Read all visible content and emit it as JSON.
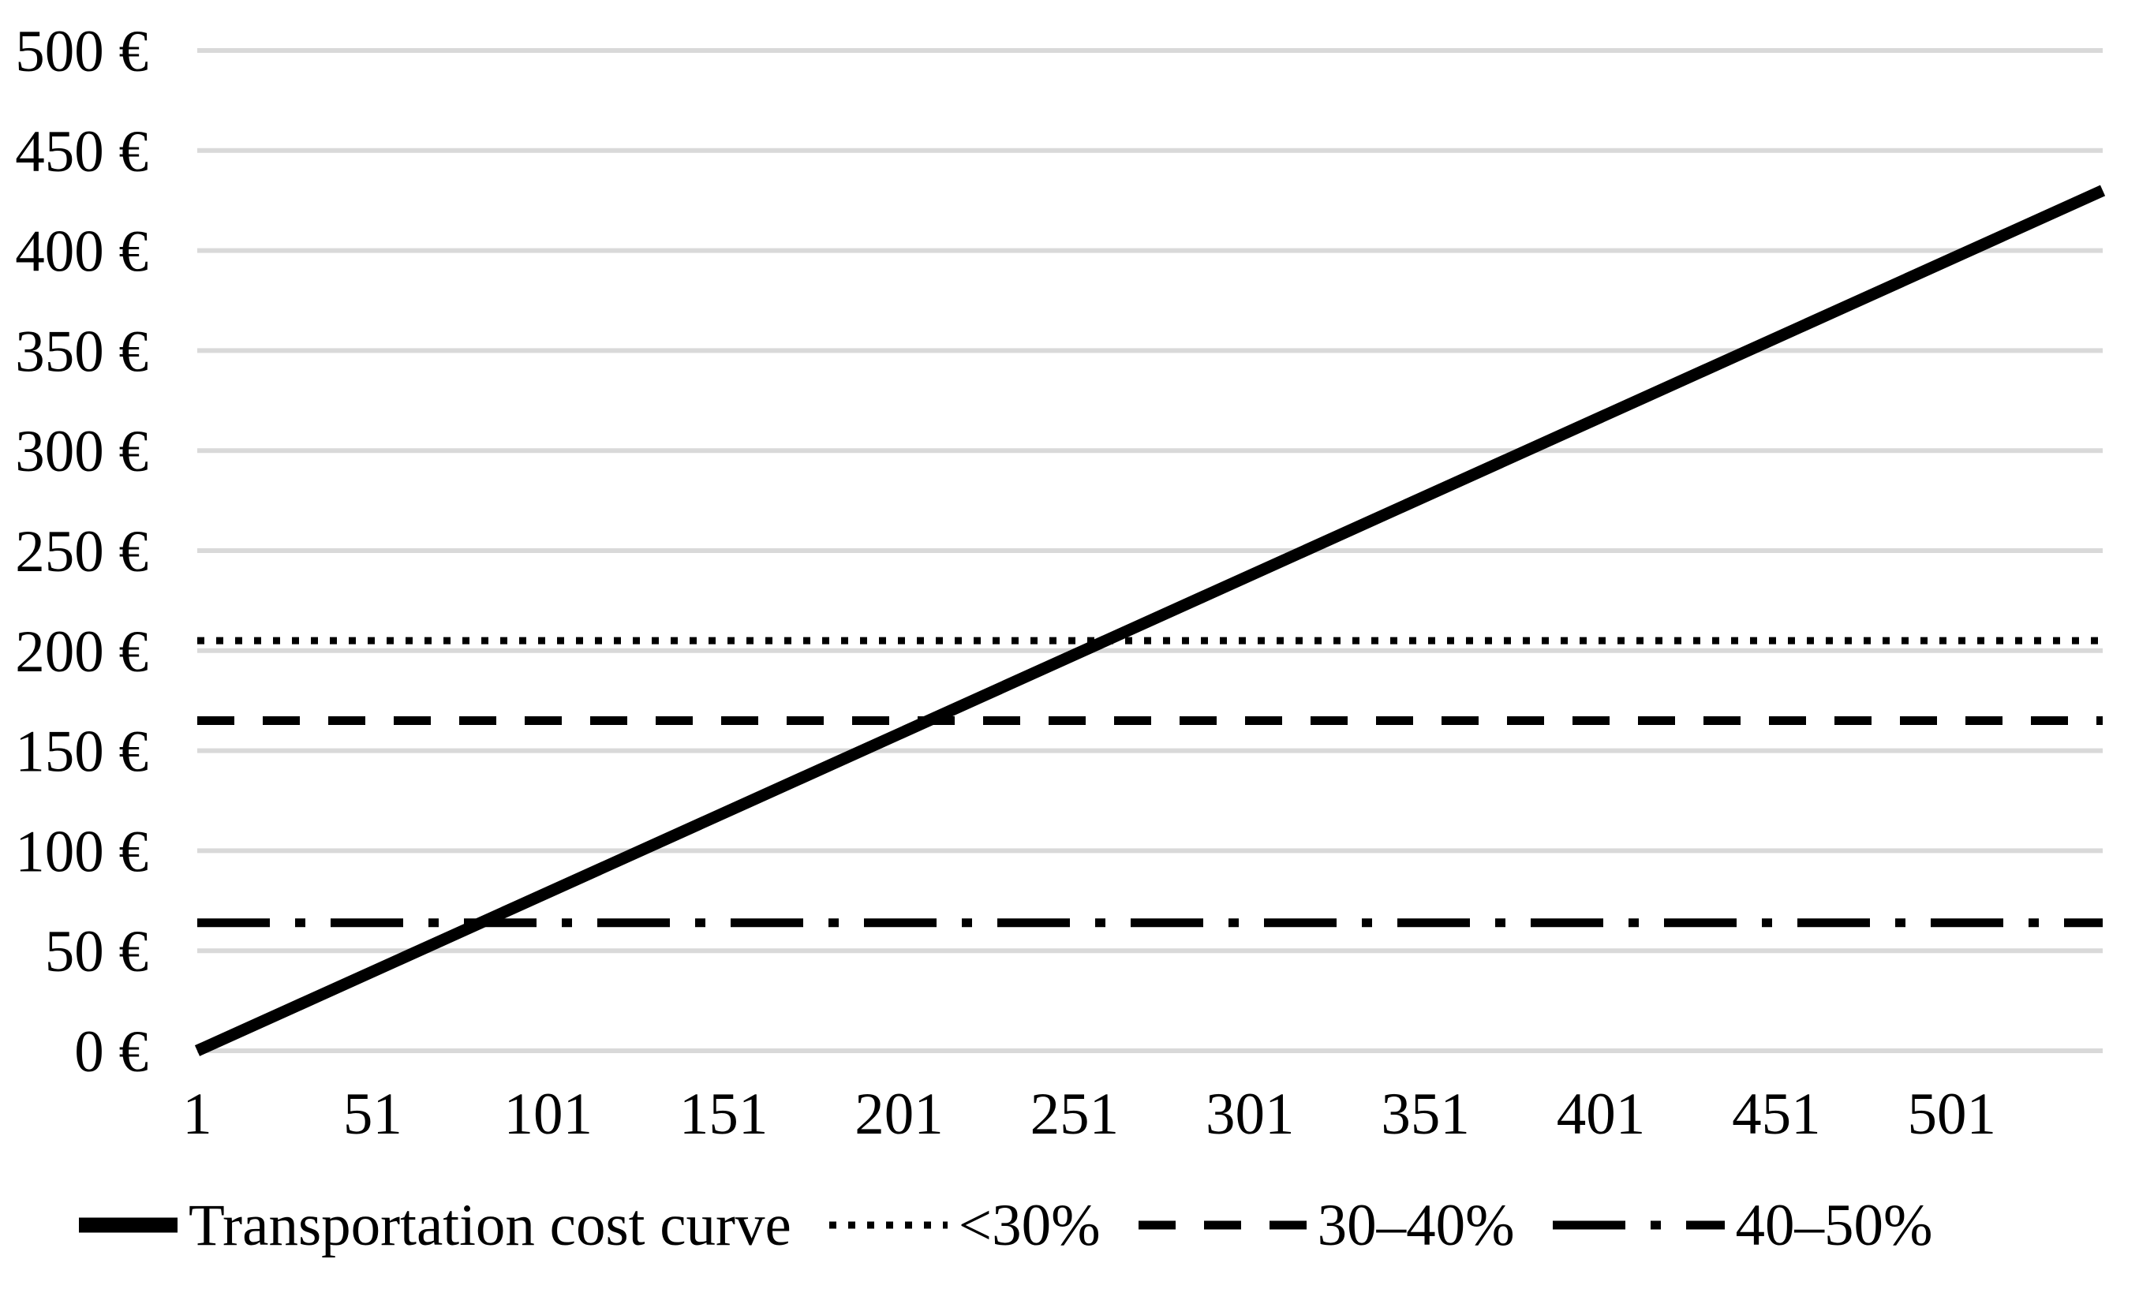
{
  "colors": {
    "background": "#ffffff",
    "gridline": "#d9d9d9",
    "line": "#000000",
    "text": "#000000"
  },
  "chart_data": {
    "type": "line",
    "title": "",
    "xlabel": "",
    "ylabel": "",
    "currency_suffix": " €",
    "ylim": [
      0,
      500
    ],
    "y_tick_step": 50,
    "y_tick_labels": [
      "0 €",
      "50 €",
      "100 €",
      "150 €",
      "200 €",
      "250 €",
      "300 €",
      "350 €",
      "400 €",
      "450 €",
      "500 €"
    ],
    "x_range": [
      1,
      544
    ],
    "x_tick_values": [
      1,
      51,
      101,
      151,
      201,
      251,
      301,
      351,
      401,
      451,
      501
    ],
    "x_tick_labels": [
      "1",
      "51",
      "101",
      "151",
      "201",
      "251",
      "301",
      "351",
      "401",
      "451",
      "501"
    ],
    "grid": "horizontal",
    "legend_position": "bottom",
    "series": [
      {
        "name": "Transportation cost curve",
        "style": "solid",
        "points": [
          [
            1,
            0
          ],
          [
            544,
            430
          ]
        ]
      },
      {
        "name": "<30%",
        "style": "dotted",
        "constant_y": 205
      },
      {
        "name": "30–40%",
        "style": "dashed",
        "constant_y": 165
      },
      {
        "name": "40–50%",
        "style": "dashdot",
        "constant_y": 64
      }
    ]
  }
}
